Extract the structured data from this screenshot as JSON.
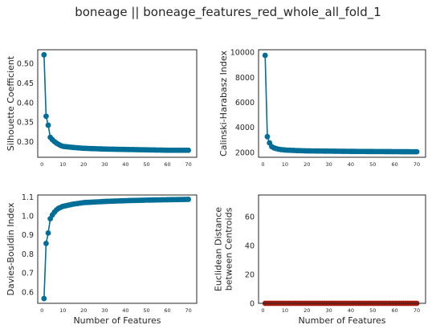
{
  "figure": {
    "title": "boneage || boneage_features_red_whole_all_fold_1"
  },
  "colors": {
    "primary": "#006e96",
    "secondary": "#a3190e",
    "axes": "#262626"
  },
  "chart_data": [
    {
      "type": "line",
      "ylabel": [
        "Silhouette Coefficient"
      ],
      "xlabel": "",
      "xlim": [
        -2,
        74
      ],
      "ylim": [
        0.26,
        0.535
      ],
      "x_ticks": [
        0,
        10,
        20,
        30,
        40,
        50,
        60,
        70
      ],
      "y_ticks": [
        0.3,
        0.35,
        0.4,
        0.45,
        0.5
      ],
      "y_tick_labels": [
        "0.30",
        "0.35",
        "0.40",
        "0.45",
        "0.50"
      ],
      "x_tick_style": "small",
      "color": "#006e96",
      "marker": "circle",
      "x_start": 1,
      "x_end": 70,
      "knots": [
        [
          1,
          0.522
        ],
        [
          2,
          0.365
        ],
        [
          3,
          0.342
        ],
        [
          4,
          0.311
        ],
        [
          5,
          0.305
        ],
        [
          6,
          0.3
        ],
        [
          7,
          0.296
        ],
        [
          8,
          0.293
        ],
        [
          9,
          0.29
        ],
        [
          10,
          0.288
        ],
        [
          15,
          0.285
        ],
        [
          20,
          0.283
        ],
        [
          30,
          0.281
        ],
        [
          40,
          0.28
        ],
        [
          50,
          0.279
        ],
        [
          60,
          0.278
        ],
        [
          70,
          0.278
        ]
      ]
    },
    {
      "type": "line",
      "ylabel": [
        "Calinski-Harabasz Index"
      ],
      "xlabel": "",
      "xlim": [
        -2,
        74
      ],
      "ylim": [
        1600,
        10200
      ],
      "x_ticks": [
        0,
        10,
        20,
        30,
        40,
        50,
        60,
        70
      ],
      "y_ticks": [
        2000,
        4000,
        6000,
        8000,
        10000
      ],
      "y_tick_labels": [
        "2000",
        "4000",
        "6000",
        "8000",
        "10000"
      ],
      "x_tick_style": "small",
      "color": "#006e96",
      "marker": "circle",
      "x_start": 1,
      "x_end": 70,
      "knots": [
        [
          1,
          9750
        ],
        [
          2,
          3250
        ],
        [
          3,
          2750
        ],
        [
          4,
          2450
        ],
        [
          5,
          2350
        ],
        [
          6,
          2300
        ],
        [
          7,
          2250
        ],
        [
          8,
          2220
        ],
        [
          10,
          2180
        ],
        [
          15,
          2140
        ],
        [
          20,
          2110
        ],
        [
          30,
          2090
        ],
        [
          40,
          2070
        ],
        [
          50,
          2060
        ],
        [
          60,
          2050
        ],
        [
          70,
          2040
        ]
      ]
    },
    {
      "type": "line",
      "ylabel": [
        "Davies-Bouldin Index"
      ],
      "xlabel": "Number of Features",
      "xlim": [
        -2,
        74
      ],
      "ylim": [
        0.54,
        1.11
      ],
      "x_ticks": [
        0,
        10,
        20,
        30,
        40,
        50,
        60,
        70
      ],
      "y_ticks": [
        0.6,
        0.7,
        0.8,
        0.9,
        1.0,
        1.1
      ],
      "y_tick_labels": [
        "0.6",
        "0.7",
        "0.8",
        "0.9",
        "1.0",
        "1.1"
      ],
      "x_tick_style": "small",
      "color": "#006e96",
      "marker": "circle",
      "x_start": 1,
      "x_end": 70,
      "knots": [
        [
          1,
          0.565
        ],
        [
          2,
          0.855
        ],
        [
          3,
          0.91
        ],
        [
          4,
          0.985
        ],
        [
          5,
          1.005
        ],
        [
          6,
          1.02
        ],
        [
          7,
          1.032
        ],
        [
          8,
          1.04
        ],
        [
          10,
          1.05
        ],
        [
          15,
          1.062
        ],
        [
          20,
          1.07
        ],
        [
          30,
          1.076
        ],
        [
          40,
          1.08
        ],
        [
          50,
          1.083
        ],
        [
          60,
          1.085
        ],
        [
          70,
          1.087
        ]
      ]
    },
    {
      "type": "line",
      "ylabel": [
        "Euclidean Distance",
        "between Centroids"
      ],
      "xlabel": "Number of Features",
      "xlim": [
        -2,
        74
      ],
      "ylim": [
        0,
        75
      ],
      "x_ticks": [
        0,
        10,
        20,
        30,
        40,
        50,
        60,
        70
      ],
      "y_ticks": [
        0,
        20,
        40,
        60
      ],
      "y_tick_labels": [
        "0",
        "20",
        "40",
        "60"
      ],
      "x_tick_style": "small",
      "color": "#a3190e",
      "marker": "circle",
      "x_start": 1,
      "x_end": 70,
      "knots": [
        [
          1,
          0
        ],
        [
          70,
          0
        ]
      ]
    }
  ]
}
